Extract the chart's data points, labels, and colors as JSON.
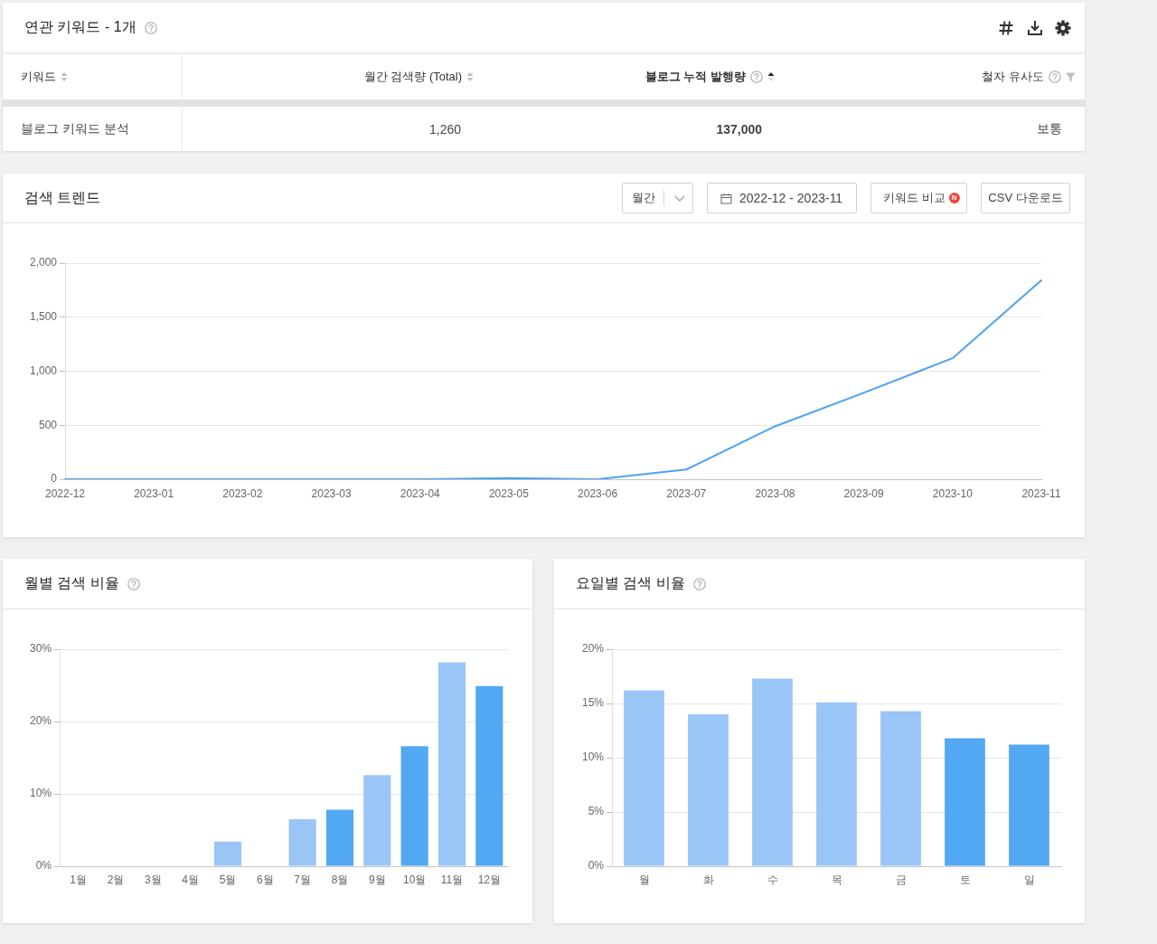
{
  "chart_data": [
    {
      "type": "other",
      "title": "연관 키워드 - 1개",
      "categories": [
        "키워드",
        "월간 검색량 (Total)",
        "블로그 누적 발행량",
        "철자 유사도"
      ],
      "annotations": [
        "블로그 키워드 분석",
        "1,260",
        "137,000",
        "보통"
      ]
    },
    {
      "type": "line",
      "title": "검색 트렌드",
      "annotations": [
        "월간",
        "2022-12 - 2023-11",
        "키워드 비교",
        "N",
        "CSV 다운로드"
      ],
      "categories": [
        "2022-12",
        "2023-01",
        "2023-02",
        "2023-03",
        "2023-04",
        "2023-05",
        "2023-06",
        "2023-07",
        "2023-08",
        "2023-09",
        "2023-10",
        "2023-11"
      ],
      "values": [
        0,
        0,
        0,
        0,
        0,
        10,
        0,
        90,
        490,
        800,
        1120,
        1840
      ],
      "color": "#4ba3f1",
      "ylim": [
        0,
        2000
      ],
      "yticks": [
        0,
        500,
        {
          "value": 1000,
          "label": "1,000"
        },
        {
          "value": 1500,
          "label": "1,500"
        },
        {
          "value": 2000,
          "label": "2,000"
        }
      ],
      "grid": "y",
      "legend": false,
      "marker": "none"
    },
    {
      "type": "bar",
      "title": "월별 검색 비율",
      "categories": [
        "1월",
        "2월",
        "3월",
        "4월",
        "5월",
        "6월",
        "7월",
        "8월",
        "9월",
        "10월",
        "11월",
        "12월"
      ],
      "values": [
        0,
        0,
        0,
        0,
        3.4,
        0,
        6.5,
        7.8,
        12.6,
        16.6,
        28.2,
        24.9
      ],
      "colors": [
        "#99c5f7",
        "#52a8f2",
        "#99c5f7",
        "#52a8f2",
        "#99c5f7",
        "#52a8f2",
        "#99c5f7",
        "#52a8f2",
        "#99c5f7",
        "#52a8f2",
        "#99c5f7",
        "#52a8f2"
      ],
      "ylim": [
        0,
        30
      ],
      "yticks": [
        {
          "value": 0,
          "label": "0%"
        },
        {
          "value": 10,
          "label": "10%"
        },
        {
          "value": 20,
          "label": "20%"
        },
        {
          "value": 30,
          "label": "30%"
        }
      ],
      "grid": "y",
      "legend": false
    },
    {
      "type": "bar",
      "title": "요일별 검색 비율",
      "categories": [
        "월",
        "화",
        "수",
        "목",
        "금",
        "토",
        "일"
      ],
      "values": [
        16.2,
        14.0,
        17.3,
        15.1,
        14.3,
        11.8,
        11.2
      ],
      "colors": [
        "#99c5f7",
        "#99c5f7",
        "#99c5f7",
        "#99c5f7",
        "#99c5f7",
        "#52a8f2",
        "#52a8f2"
      ],
      "ylim": [
        0,
        20
      ],
      "yticks": [
        {
          "value": 0,
          "label": "0%"
        },
        {
          "value": 5,
          "label": "5%"
        },
        {
          "value": 10,
          "label": "10%"
        },
        {
          "value": 15,
          "label": "15%"
        },
        {
          "value": 20,
          "label": "20%"
        }
      ],
      "grid": "y",
      "legend": false
    }
  ]
}
